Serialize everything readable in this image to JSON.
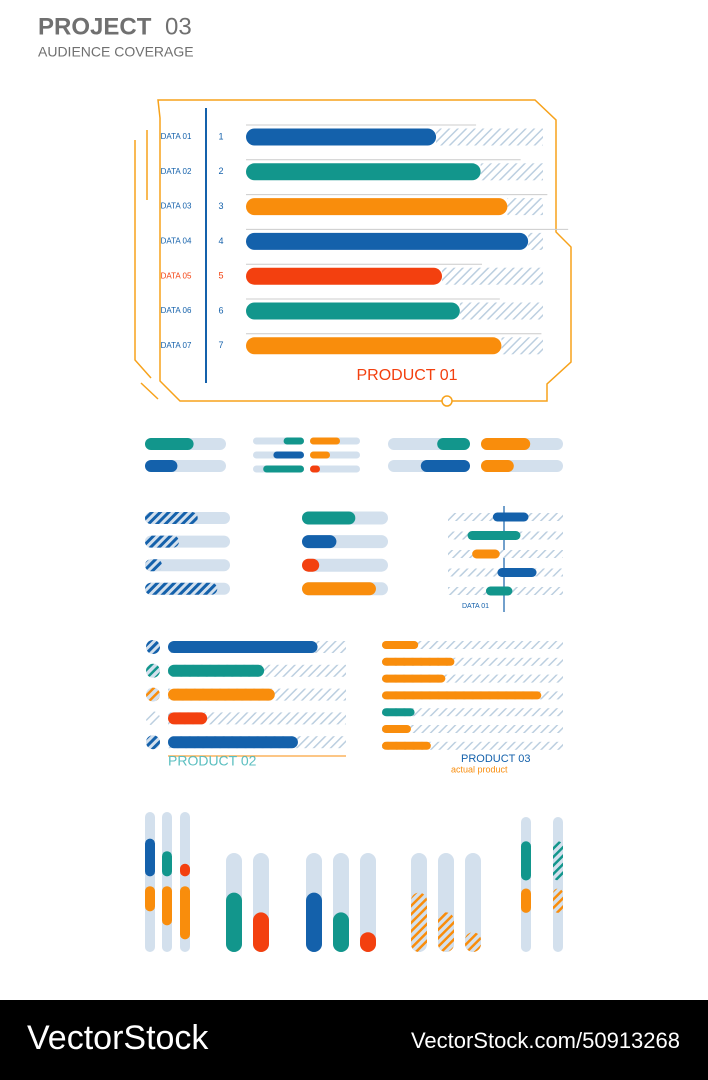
{
  "header": {
    "title": "PROJECT",
    "number": "03",
    "subtitle": "AUDIENCE COVERAGE"
  },
  "chart_data": {
    "type": "bar",
    "categories": [
      "DATA 01",
      "DATA 02",
      "DATA 03",
      "DATA 04",
      "DATA 05",
      "DATA 06",
      "DATA 07"
    ],
    "ranks": [
      1,
      2,
      3,
      4,
      5,
      6,
      7
    ],
    "values": [
      64,
      79,
      88,
      95,
      66,
      72,
      86
    ],
    "colors": [
      "#1461ab",
      "#12968c",
      "#f98d0c",
      "#1461ab",
      "#f3400f",
      "#12968c",
      "#f98d0c"
    ],
    "xlim": [
      0,
      100
    ],
    "highlight": 4,
    "label_color": "#1461ab",
    "highlight_color": "#f3400f",
    "product_label": "PRODUCT 01"
  },
  "widgets": {
    "w1": {
      "values": [
        60,
        40
      ],
      "colors": [
        "#12968c",
        "#1461ab"
      ]
    },
    "w2l": {
      "values": [
        40,
        60,
        80
      ],
      "colors": [
        "#12968c",
        "#1461ab",
        "#12968c"
      ]
    },
    "w2r": {
      "values": [
        60,
        40,
        20
      ],
      "colors": [
        "#f98d0c",
        "#f98d0c",
        "#f3400f"
      ]
    },
    "w3l": {
      "values": [
        40,
        60
      ],
      "colors": [
        "#12968c",
        "#1461ab"
      ]
    },
    "w3r": {
      "values": [
        60,
        40
      ],
      "colors": [
        "#f98d0c",
        "#f98d0c"
      ]
    },
    "w4": {
      "values": [
        62,
        40,
        20,
        85
      ],
      "color": "#1461ab"
    },
    "w5": {
      "values": [
        62,
        40,
        20,
        86
      ],
      "colors": [
        "#12968c",
        "#1461ab",
        "#f3400f",
        "#f98d0c"
      ]
    },
    "w6": {
      "ranges": [
        [
          39,
          70
        ],
        [
          17,
          63
        ],
        [
          21,
          45
        ],
        [
          43,
          77
        ],
        [
          33,
          56
        ]
      ],
      "colors": [
        "#1461ab",
        "#12968c",
        "#f98d0c",
        "#1461ab",
        "#12968c"
      ],
      "label": "DATA 01"
    },
    "w7": {
      "values": [
        84,
        54,
        60,
        22,
        73
      ],
      "colors": [
        "#1461ab",
        "#12968c",
        "#f98d0c",
        "#f3400f",
        "#1461ab"
      ],
      "label": "PRODUCT 02"
    },
    "w8": {
      "values": [
        20,
        40,
        35,
        88,
        18,
        16,
        27
      ],
      "colors": [
        "#f98d0c",
        "#f98d0c",
        "#f98d0c",
        "#f98d0c",
        "#12968c",
        "#f98d0c",
        "#f98d0c"
      ],
      "label": "PRODUCT 03",
      "sublabel": "actual product"
    },
    "v1": {
      "segments": [
        [
          [
            54,
            81
          ],
          [
            29,
            47
          ]
        ],
        [
          [
            54,
            72
          ],
          [
            19,
            47
          ]
        ],
        [
          [
            54,
            63
          ],
          [
            9,
            47
          ]
        ]
      ],
      "colors": [
        [
          "#1461ab",
          "#f98d0c"
        ],
        [
          "#12968c",
          "#f98d0c"
        ],
        [
          "#f3400f",
          "#f98d0c"
        ]
      ]
    },
    "v2": {
      "values": [
        60,
        40
      ],
      "colors": [
        "#12968c",
        "#f3400f"
      ]
    },
    "v3": {
      "values": [
        60,
        40,
        20
      ],
      "colors": [
        "#1461ab",
        "#12968c",
        "#f3400f"
      ]
    },
    "v4": {
      "values": [
        60,
        40,
        20
      ],
      "color": "#f98d0c"
    },
    "v5": {
      "segments": [
        [
          [
            53,
            82
          ],
          [
            29,
            47
          ]
        ],
        [
          [
            53,
            82
          ],
          [
            29,
            47
          ]
        ]
      ],
      "colors": [
        [
          "#12968c",
          "#f98d0c"
        ],
        [
          "#12968c",
          "#f98d0c"
        ]
      ]
    }
  },
  "footer": {
    "brand": "VectorStock",
    "url": "VectorStock.com/50913268"
  }
}
